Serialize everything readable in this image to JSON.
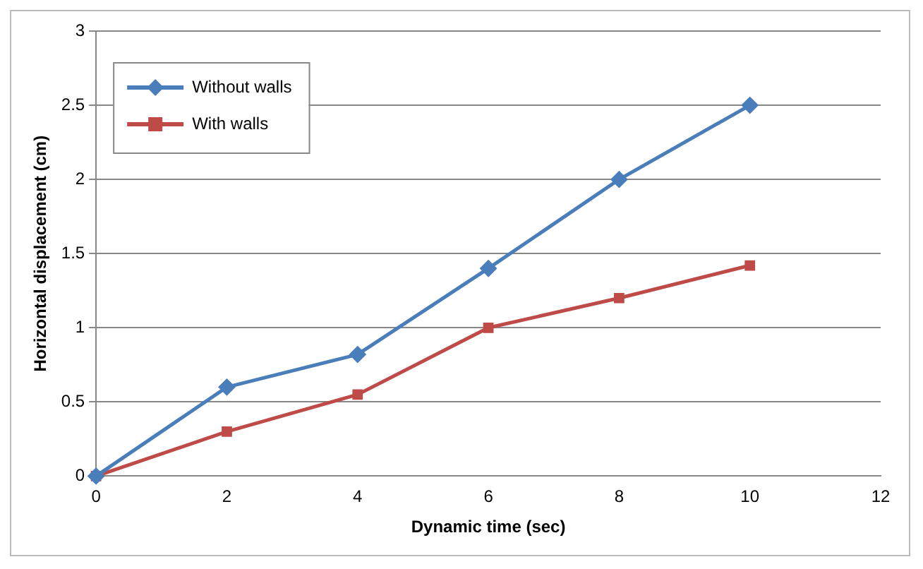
{
  "chart_data": {
    "type": "line",
    "xlabel": "Dynamic time (sec)",
    "ylabel": "Horizontal displacement (cm)",
    "x": [
      0,
      2,
      4,
      6,
      8,
      10
    ],
    "series": [
      {
        "name": "Without walls",
        "color": "#4a7ebb",
        "marker": "diamond",
        "values": [
          0,
          0.6,
          0.82,
          1.4,
          2.0,
          2.5
        ]
      },
      {
        "name": "With walls",
        "color": "#be4b48",
        "marker": "square",
        "values": [
          0,
          0.3,
          0.55,
          1.0,
          1.2,
          1.42
        ]
      }
    ],
    "xlim": [
      0,
      12
    ],
    "xticks": [
      0,
      2,
      4,
      6,
      8,
      10,
      12
    ],
    "ylim": [
      0,
      3
    ],
    "yticks": [
      0,
      0.5,
      1,
      1.5,
      2,
      2.5,
      3
    ],
    "grid": "y",
    "legend": "top left",
    "line_style": "solid"
  }
}
